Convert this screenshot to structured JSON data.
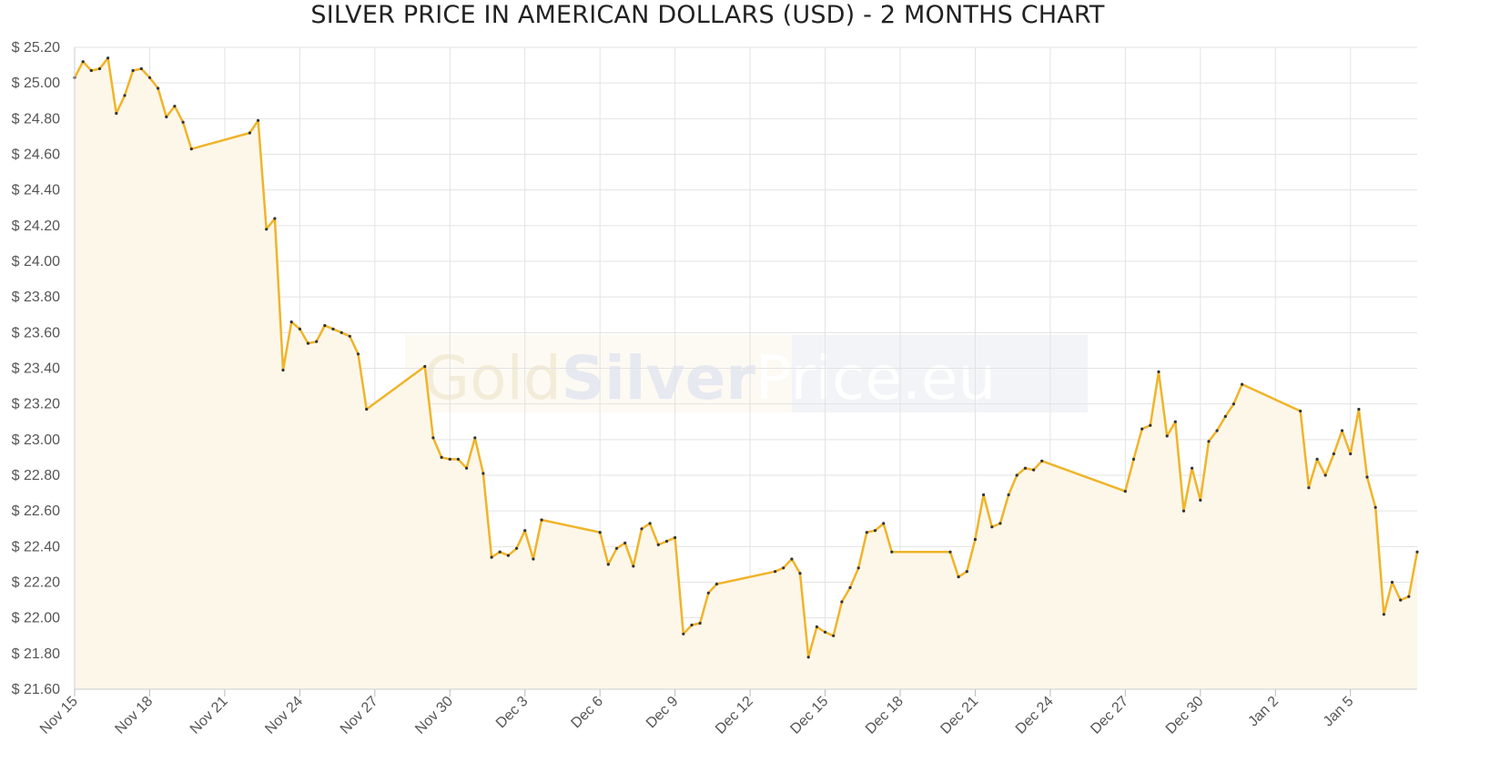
{
  "chart_data": {
    "type": "area",
    "title": "SILVER PRICE IN AMERICAN DOLLARS (USD) - 2 MONTHS CHART",
    "xlabel": "",
    "ylabel": "",
    "ylim": [
      21.6,
      25.2
    ],
    "y_ticks": [
      "$ 25.20",
      "$ 25.00",
      "$ 24.80",
      "$ 24.60",
      "$ 24.40",
      "$ 24.20",
      "$ 24.00",
      "$ 23.80",
      "$ 23.60",
      "$ 23.40",
      "$ 23.20",
      "$ 23.00",
      "$ 22.80",
      "$ 22.60",
      "$ 22.40",
      "$ 22.20",
      "$ 22.00",
      "$ 21.80",
      "$ 21.60"
    ],
    "x_ticks": [
      "Nov 15",
      "Nov 18",
      "Nov 21",
      "Nov 24",
      "Nov 27",
      "Nov 30",
      "Dec 3",
      "Dec 6",
      "Dec 9",
      "Dec 12",
      "Dec 15",
      "Dec 18",
      "Dec 21",
      "Dec 24",
      "Dec 27",
      "Dec 30",
      "Jan 2",
      "Jan 5"
    ],
    "x_range": [
      "Nov 15",
      "Jan 7"
    ],
    "grid": true,
    "legend": "none",
    "line_color": "#f0b429",
    "fill_color": "#fdf7ea",
    "series": [
      {
        "values": [
          [
            "Nov 15 00:00",
            25.03
          ],
          [
            "Nov 15 08:00",
            25.12
          ],
          [
            "Nov 15 16:00",
            25.07
          ],
          [
            "Nov 16 00:00",
            25.08
          ],
          [
            "Nov 16 08:00",
            25.14
          ],
          [
            "Nov 16 16:00",
            24.83
          ],
          [
            "Nov 17 00:00",
            24.93
          ],
          [
            "Nov 17 08:00",
            25.07
          ],
          [
            "Nov 17 16:00",
            25.08
          ],
          [
            "Nov 18 00:00",
            25.03
          ],
          [
            "Nov 18 08:00",
            24.97
          ],
          [
            "Nov 18 16:00",
            24.81
          ],
          [
            "Nov 19 00:00",
            24.87
          ],
          [
            "Nov 19 08:00",
            24.78
          ],
          [
            "Nov 19 16:00",
            24.63
          ],
          [
            "Nov 22 00:00",
            24.72
          ],
          [
            "Nov 22 08:00",
            24.79
          ],
          [
            "Nov 22 16:00",
            24.18
          ],
          [
            "Nov 23 00:00",
            24.24
          ],
          [
            "Nov 23 08:00",
            23.39
          ],
          [
            "Nov 23 16:00",
            23.66
          ],
          [
            "Nov 24 00:00",
            23.62
          ],
          [
            "Nov 24 08:00",
            23.54
          ],
          [
            "Nov 24 16:00",
            23.55
          ],
          [
            "Nov 25 00:00",
            23.64
          ],
          [
            "Nov 25 08:00",
            23.62
          ],
          [
            "Nov 25 16:00",
            23.6
          ],
          [
            "Nov 26 00:00",
            23.58
          ],
          [
            "Nov 26 08:00",
            23.48
          ],
          [
            "Nov 26 16:00",
            23.17
          ],
          [
            "Nov 29 00:00",
            23.41
          ],
          [
            "Nov 29 08:00",
            23.01
          ],
          [
            "Nov 29 16:00",
            22.9
          ],
          [
            "Nov 30 00:00",
            22.89
          ],
          [
            "Nov 30 08:00",
            22.89
          ],
          [
            "Nov 30 16:00",
            22.84
          ],
          [
            "Dec 1 00:00",
            23.01
          ],
          [
            "Dec 1 08:00",
            22.81
          ],
          [
            "Dec 1 16:00",
            22.34
          ],
          [
            "Dec 2 00:00",
            22.37
          ],
          [
            "Dec 2 08:00",
            22.35
          ],
          [
            "Dec 2 16:00",
            22.39
          ],
          [
            "Dec 3 00:00",
            22.49
          ],
          [
            "Dec 3 08:00",
            22.33
          ],
          [
            "Dec 3 16:00",
            22.55
          ],
          [
            "Dec 6 00:00",
            22.48
          ],
          [
            "Dec 6 08:00",
            22.3
          ],
          [
            "Dec 6 16:00",
            22.39
          ],
          [
            "Dec 7 00:00",
            22.42
          ],
          [
            "Dec 7 08:00",
            22.29
          ],
          [
            "Dec 7 16:00",
            22.5
          ],
          [
            "Dec 8 00:00",
            22.53
          ],
          [
            "Dec 8 08:00",
            22.41
          ],
          [
            "Dec 8 16:00",
            22.43
          ],
          [
            "Dec 9 00:00",
            22.45
          ],
          [
            "Dec 9 08:00",
            21.91
          ],
          [
            "Dec 9 16:00",
            21.96
          ],
          [
            "Dec 10 00:00",
            21.97
          ],
          [
            "Dec 10 08:00",
            22.14
          ],
          [
            "Dec 10 16:00",
            22.19
          ],
          [
            "Dec 13 00:00",
            22.26
          ],
          [
            "Dec 13 08:00",
            22.28
          ],
          [
            "Dec 13 16:00",
            22.33
          ],
          [
            "Dec 14 00:00",
            22.25
          ],
          [
            "Dec 14 08:00",
            21.78
          ],
          [
            "Dec 14 16:00",
            21.95
          ],
          [
            "Dec 15 00:00",
            21.92
          ],
          [
            "Dec 15 08:00",
            21.9
          ],
          [
            "Dec 15 16:00",
            22.09
          ],
          [
            "Dec 16 00:00",
            22.17
          ],
          [
            "Dec 16 08:00",
            22.28
          ],
          [
            "Dec 16 16:00",
            22.48
          ],
          [
            "Dec 17 00:00",
            22.49
          ],
          [
            "Dec 17 08:00",
            22.53
          ],
          [
            "Dec 17 16:00",
            22.37
          ],
          [
            "Dec 20 00:00",
            22.37
          ],
          [
            "Dec 20 08:00",
            22.23
          ],
          [
            "Dec 20 16:00",
            22.26
          ],
          [
            "Dec 21 00:00",
            22.44
          ],
          [
            "Dec 21 08:00",
            22.69
          ],
          [
            "Dec 21 16:00",
            22.51
          ],
          [
            "Dec 22 00:00",
            22.53
          ],
          [
            "Dec 22 08:00",
            22.69
          ],
          [
            "Dec 22 16:00",
            22.8
          ],
          [
            "Dec 23 00:00",
            22.84
          ],
          [
            "Dec 23 08:00",
            22.83
          ],
          [
            "Dec 23 16:00",
            22.88
          ],
          [
            "Dec 27 00:00",
            22.71
          ],
          [
            "Dec 27 08:00",
            22.89
          ],
          [
            "Dec 27 16:00",
            23.06
          ],
          [
            "Dec 28 00:00",
            23.08
          ],
          [
            "Dec 28 08:00",
            23.38
          ],
          [
            "Dec 28 16:00",
            23.02
          ],
          [
            "Dec 29 00:00",
            23.1
          ],
          [
            "Dec 29 08:00",
            22.6
          ],
          [
            "Dec 29 16:00",
            22.84
          ],
          [
            "Dec 30 00:00",
            22.66
          ],
          [
            "Dec 30 08:00",
            22.99
          ],
          [
            "Dec 30 16:00",
            23.05
          ],
          [
            "Dec 31 00:00",
            23.13
          ],
          [
            "Dec 31 08:00",
            23.2
          ],
          [
            "Dec 31 16:00",
            23.31
          ],
          [
            "Jan 3 00:00",
            23.16
          ],
          [
            "Jan 3 08:00",
            22.73
          ],
          [
            "Jan 3 16:00",
            22.89
          ],
          [
            "Jan 4 00:00",
            22.8
          ],
          [
            "Jan 4 08:00",
            22.92
          ],
          [
            "Jan 4 16:00",
            23.05
          ],
          [
            "Jan 5 00:00",
            22.92
          ],
          [
            "Jan 5 08:00",
            23.17
          ],
          [
            "Jan 5 16:00",
            22.79
          ],
          [
            "Jan 6 00:00",
            22.62
          ],
          [
            "Jan 6 08:00",
            22.02
          ],
          [
            "Jan 6 16:00",
            22.2
          ],
          [
            "Jan 7 00:00",
            22.1
          ],
          [
            "Jan 7 08:00",
            22.12
          ],
          [
            "Jan 7 16:00",
            22.37
          ]
        ]
      }
    ],
    "watermark": {
      "gold": "Gold",
      "silver": "Silver",
      "price": "Price.eu"
    }
  }
}
